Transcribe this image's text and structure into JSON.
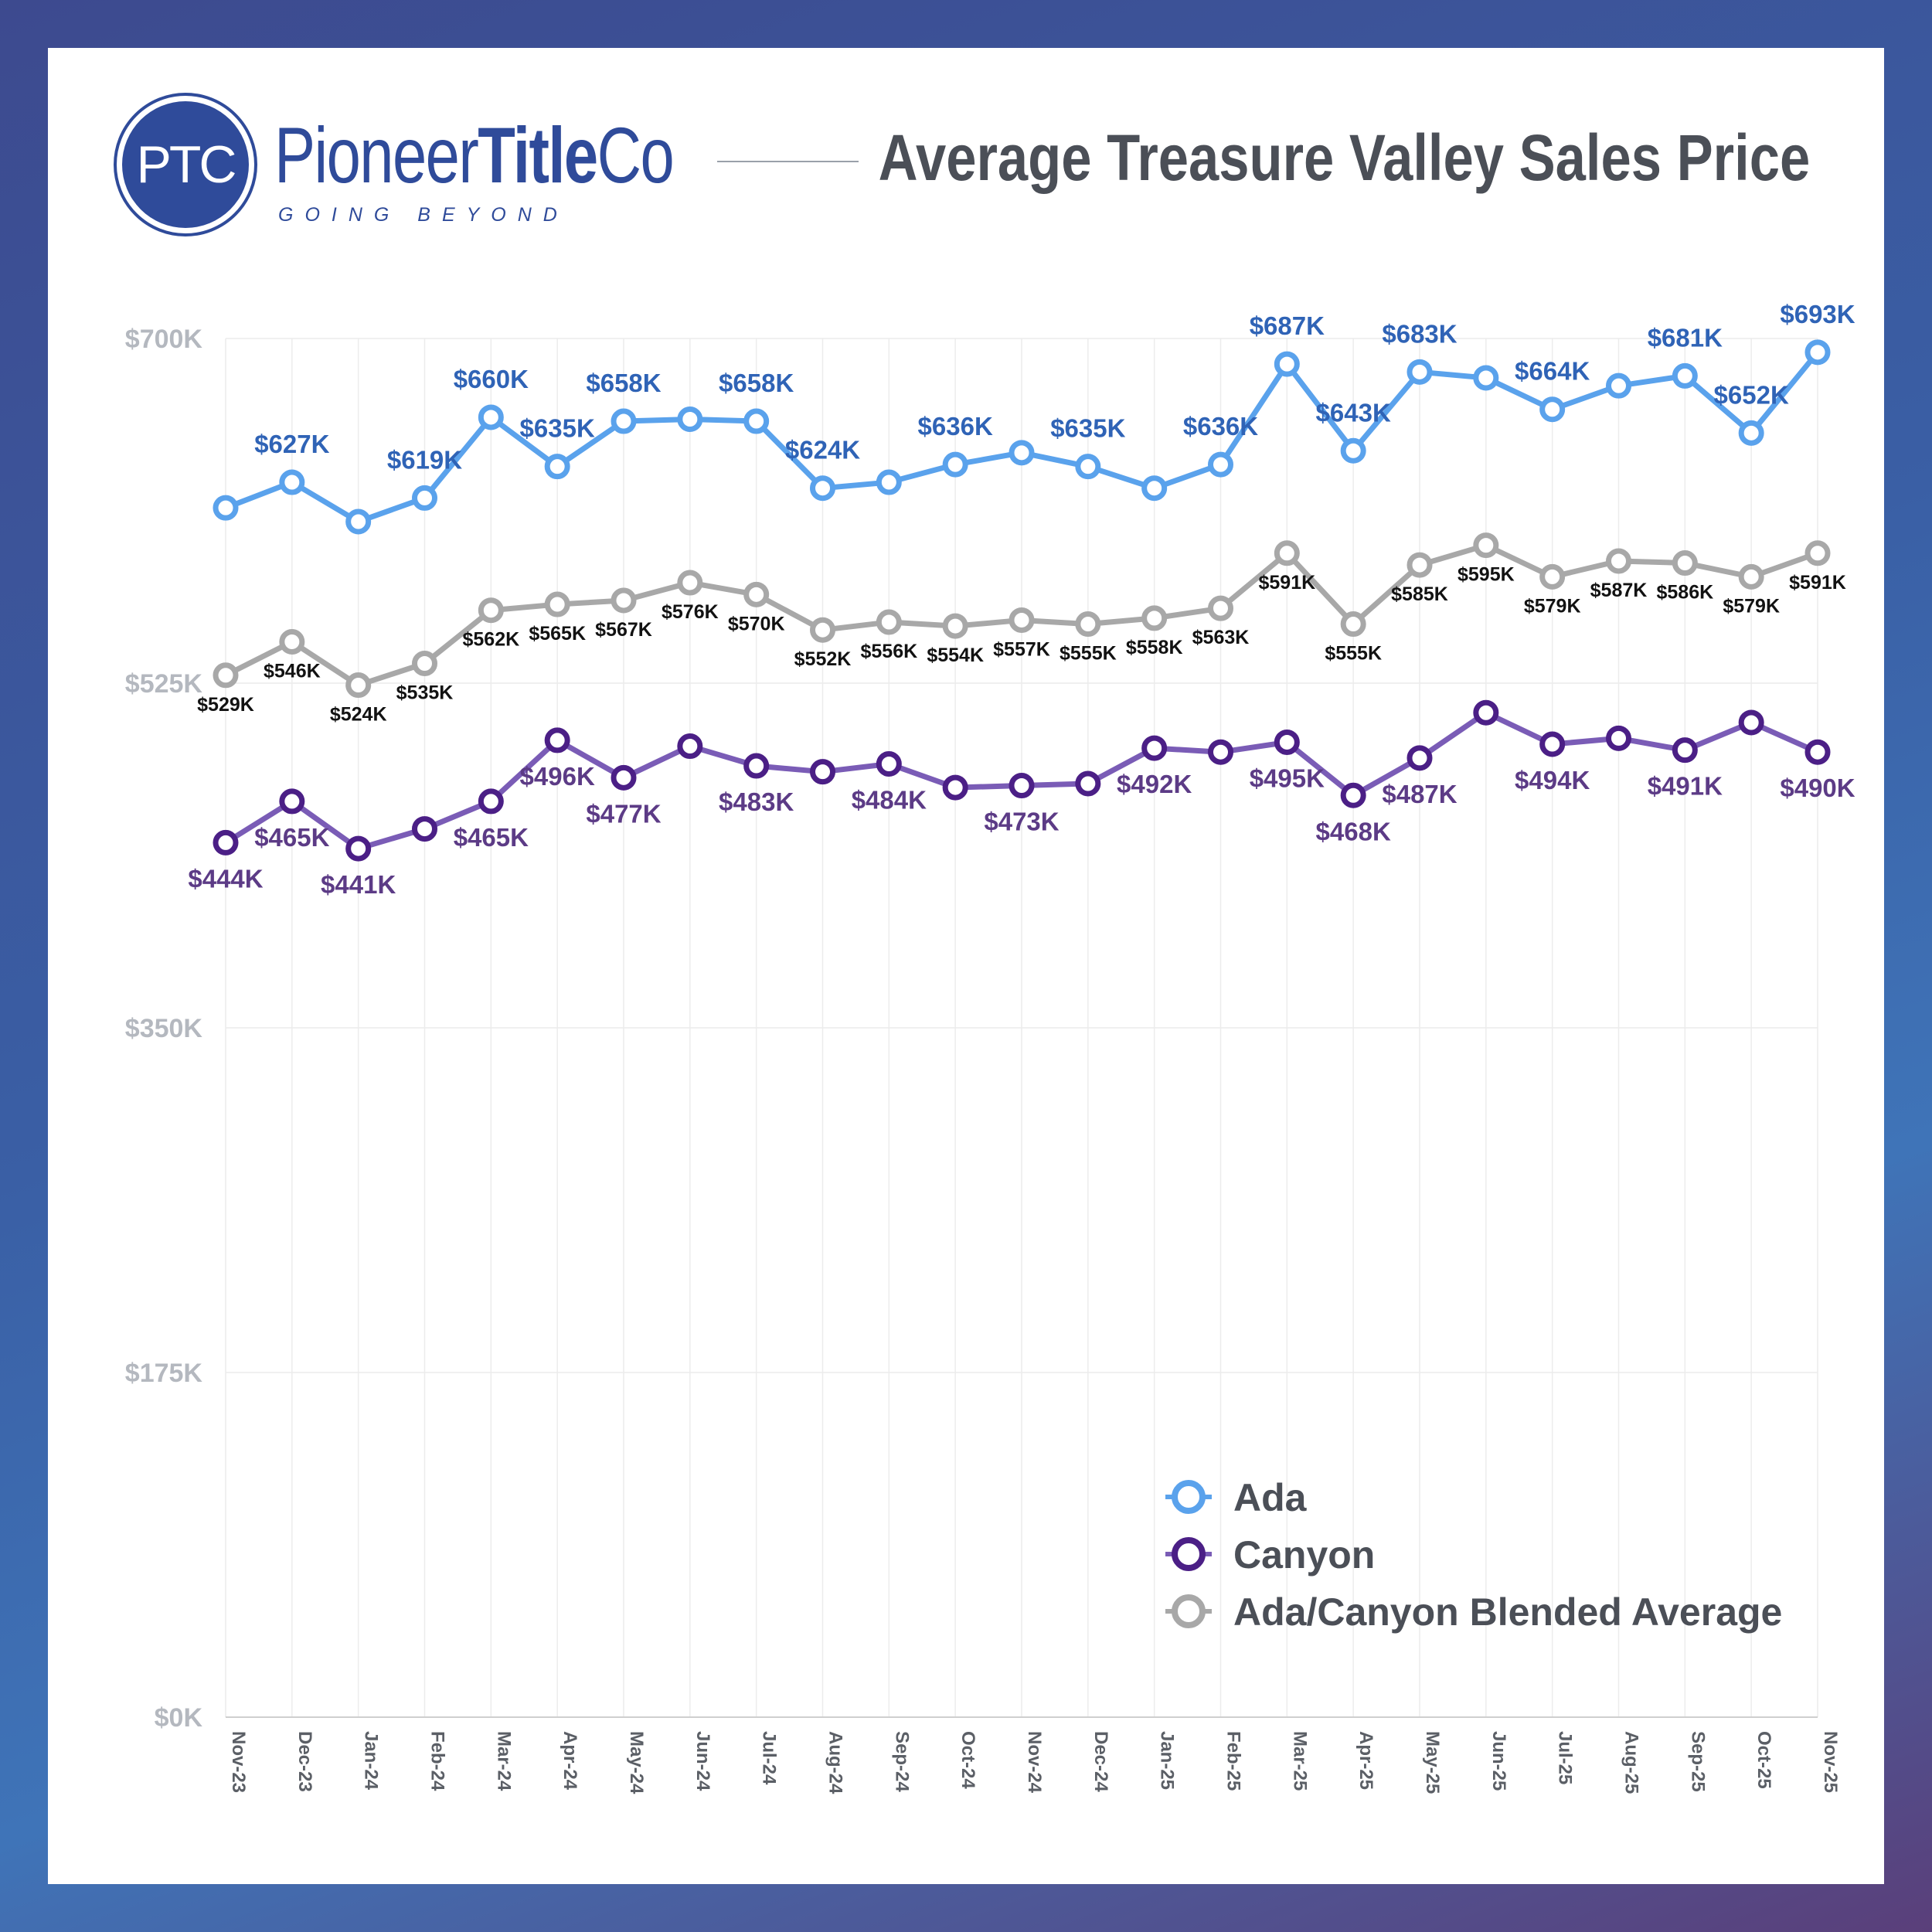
{
  "brand": {
    "logo_initials": "PTC",
    "name_regular": "Pioneer",
    "name_bold": "Title",
    "name_end": "Co",
    "tagline": "GOING BEYOND"
  },
  "colors": {
    "ada": "#5aa2ec",
    "ada_label": "#2f63b6",
    "canyon": "#4b1f86",
    "canyon_line": "#7a5cb6",
    "canyon_label": "#5c3b86",
    "blend": "#a8a8a8",
    "blend_label": "#121212",
    "brand": "#2f4b9a"
  },
  "chart_data": {
    "type": "line",
    "title": "Average Treasure Valley Sales Price",
    "xlabel": "",
    "ylabel": "",
    "ylim": [
      0,
      700
    ],
    "yticks": [
      0,
      175,
      350,
      525,
      700
    ],
    "ytick_labels": [
      "$0K",
      "$175K",
      "$350K",
      "$525K",
      "$700K"
    ],
    "grid": true,
    "legend_position": "bottom-right",
    "categories": [
      "Nov-23",
      "Dec-23",
      "Jan-24",
      "Feb-24",
      "Mar-24",
      "Apr-24",
      "May-24",
      "Jun-24",
      "Jul-24",
      "Aug-24",
      "Sep-24",
      "Oct-24",
      "Nov-24",
      "Dec-24",
      "Jan-25",
      "Feb-25",
      "Mar-25",
      "Apr-25",
      "May-25",
      "Jun-25",
      "Jul-25",
      "Aug-25",
      "Sep-25",
      "Oct-25",
      "Nov-25"
    ],
    "series": [
      {
        "key": "ada",
        "name": "Ada",
        "values": [
          614,
          627,
          607,
          619,
          660,
          635,
          658,
          659,
          658,
          624,
          627,
          636,
          642,
          635,
          624,
          636,
          687,
          643,
          683,
          680,
          664,
          676,
          681,
          652,
          693
        ],
        "labels": [
          "",
          "$627K",
          "",
          "$619K",
          "$660K",
          "$635K",
          "$658K",
          "",
          "$658K",
          "$624K",
          "",
          "$636K",
          "",
          "$635K",
          "",
          "$636K",
          "$687K",
          "$643K",
          "$683K",
          "",
          "$664K",
          "",
          "$681K",
          "$652K",
          "$693K"
        ],
        "label_pos": "above"
      },
      {
        "key": "canyon",
        "name": "Canyon",
        "values": [
          444,
          465,
          441,
          451,
          465,
          496,
          477,
          493,
          483,
          480,
          484,
          472,
          473,
          474,
          492,
          490,
          495,
          468,
          487,
          510,
          494,
          497,
          491,
          505,
          490
        ],
        "labels": [
          "$444K",
          "$465K",
          "$441K",
          "",
          "$465K",
          "$496K",
          "$477K",
          "",
          "$483K",
          "",
          "$484K",
          "",
          "$473K",
          "",
          "$492K",
          "",
          "$495K",
          "$468K",
          "$487K",
          "",
          "$494K",
          "",
          "$491K",
          "",
          "$490K"
        ],
        "label_pos": "below"
      },
      {
        "key": "blend",
        "name": "Ada/Canyon Blended Average",
        "values": [
          529,
          546,
          524,
          535,
          562,
          565,
          567,
          576,
          570,
          552,
          556,
          554,
          557,
          555,
          558,
          563,
          591,
          555,
          585,
          595,
          579,
          587,
          586,
          579,
          591
        ],
        "labels": [
          "$529K",
          "$546K",
          "$524K",
          "$535K",
          "$562K",
          "$565K",
          "$567K",
          "$576K",
          "$570K",
          "$552K",
          "$556K",
          "$554K",
          "$557K",
          "$555K",
          "$558K",
          "$563K",
          "$591K",
          "$555K",
          "$585K",
          "$595K",
          "$579K",
          "$587K",
          "$586K",
          "$579K",
          "$591K"
        ],
        "label_pos": "below"
      }
    ]
  }
}
